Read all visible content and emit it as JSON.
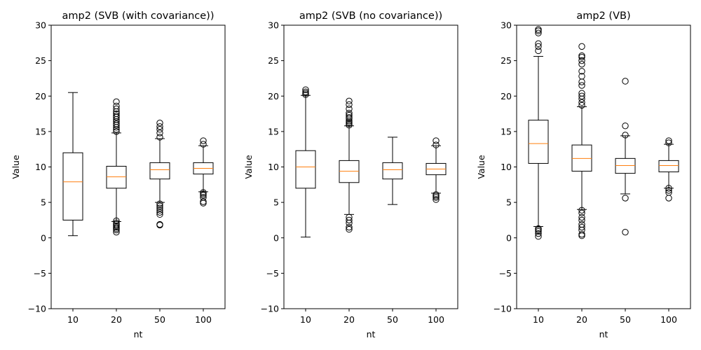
{
  "chart_data": [
    {
      "type": "box",
      "title": "amp2 (SVB (with covariance))",
      "xlabel": "nt",
      "ylabel": "Value",
      "categories": [
        "10",
        "20",
        "50",
        "100"
      ],
      "ylim": [
        -10,
        30
      ],
      "yticks": [
        -10,
        -5,
        0,
        5,
        10,
        15,
        20,
        25,
        30
      ],
      "boxes": [
        {
          "whisker_low": 0.3,
          "q1": 2.5,
          "median": 7.9,
          "q3": 12.0,
          "whisker_high": 20.5,
          "fliers": []
        },
        {
          "whisker_low": 2.3,
          "q1": 7.0,
          "median": 8.6,
          "q3": 10.1,
          "whisker_high": 14.8,
          "fliers": [
            0.8,
            1.1,
            1.3,
            1.5,
            1.7,
            1.9,
            2.1,
            2.4,
            15.0,
            15.3,
            15.6,
            15.9,
            16.1,
            16.4,
            16.7,
            17.0,
            17.2,
            17.5,
            17.8,
            18.2,
            18.6,
            19.2
          ]
        },
        {
          "whisker_low": 5.0,
          "q1": 8.3,
          "median": 9.6,
          "q3": 10.6,
          "whisker_high": 14.0,
          "fliers": [
            1.8,
            1.9,
            3.3,
            3.6,
            3.9,
            4.2,
            4.5,
            4.8,
            14.2,
            14.8,
            15.3,
            15.7,
            16.2
          ]
        },
        {
          "whisker_low": 6.5,
          "q1": 9.0,
          "median": 9.8,
          "q3": 10.6,
          "whisker_high": 13.0,
          "fliers": [
            4.9,
            5.1,
            5.7,
            6.0,
            6.2,
            6.4,
            13.2,
            13.7
          ]
        }
      ]
    },
    {
      "type": "box",
      "title": "amp2 (SVB (no covariance))",
      "xlabel": "nt",
      "ylabel": "Value",
      "categories": [
        "10",
        "20",
        "50",
        "100"
      ],
      "ylim": [
        -10,
        30
      ],
      "yticks": [
        -10,
        -5,
        0,
        5,
        10,
        15,
        20,
        25,
        30
      ],
      "boxes": [
        {
          "whisker_low": 0.1,
          "q1": 7.0,
          "median": 10.0,
          "q3": 12.3,
          "whisker_high": 20.1,
          "fliers": [
            20.2,
            20.4,
            20.6,
            20.9
          ]
        },
        {
          "whisker_low": 3.3,
          "q1": 7.8,
          "median": 9.4,
          "q3": 10.9,
          "whisker_high": 15.8,
          "fliers": [
            1.2,
            1.5,
            2.1,
            2.5,
            2.9,
            15.9,
            16.1,
            16.3,
            16.5,
            16.8,
            17.0,
            17.3,
            17.6,
            18.2,
            18.8,
            19.3
          ]
        },
        {
          "whisker_low": 4.7,
          "q1": 8.3,
          "median": 9.6,
          "q3": 10.6,
          "whisker_high": 14.2,
          "fliers": []
        },
        {
          "whisker_low": 6.3,
          "q1": 8.9,
          "median": 9.7,
          "q3": 10.5,
          "whisker_high": 13.0,
          "fliers": [
            5.4,
            5.7,
            5.9,
            6.1,
            13.1,
            13.7
          ]
        }
      ]
    },
    {
      "type": "box",
      "title": "amp2 (VB)",
      "xlabel": "nt",
      "ylabel": "Value",
      "categories": [
        "10",
        "20",
        "50",
        "100"
      ],
      "ylim": [
        -10,
        30
      ],
      "yticks": [
        -10,
        -5,
        0,
        5,
        10,
        15,
        20,
        25,
        30
      ],
      "boxes": [
        {
          "whisker_low": 1.6,
          "q1": 10.5,
          "median": 13.3,
          "q3": 16.6,
          "whisker_high": 25.6,
          "fliers": [
            0.2,
            0.6,
            0.9,
            1.1,
            1.3,
            26.4,
            27.0,
            27.4,
            28.9,
            29.2,
            29.4
          ]
        },
        {
          "whisker_low": 4.0,
          "q1": 9.4,
          "median": 11.2,
          "q3": 13.1,
          "whisker_high": 18.5,
          "fliers": [
            0.3,
            0.5,
            1.1,
            1.5,
            1.9,
            2.5,
            2.9,
            3.5,
            3.9,
            18.7,
            19.1,
            19.6,
            20.0,
            20.4,
            21.5,
            22.0,
            22.8,
            23.5,
            24.5,
            25.0,
            25.5,
            25.7,
            27.0
          ]
        },
        {
          "whisker_low": 6.2,
          "q1": 9.1,
          "median": 10.2,
          "q3": 11.2,
          "whisker_high": 14.4,
          "fliers": [
            0.8,
            5.6,
            14.5,
            15.8,
            22.1
          ]
        },
        {
          "whisker_low": 7.0,
          "q1": 9.3,
          "median": 10.2,
          "q3": 10.9,
          "whisker_high": 13.2,
          "fliers": [
            5.6,
            6.4,
            6.7,
            7.0,
            13.4,
            13.7
          ]
        }
      ]
    }
  ]
}
